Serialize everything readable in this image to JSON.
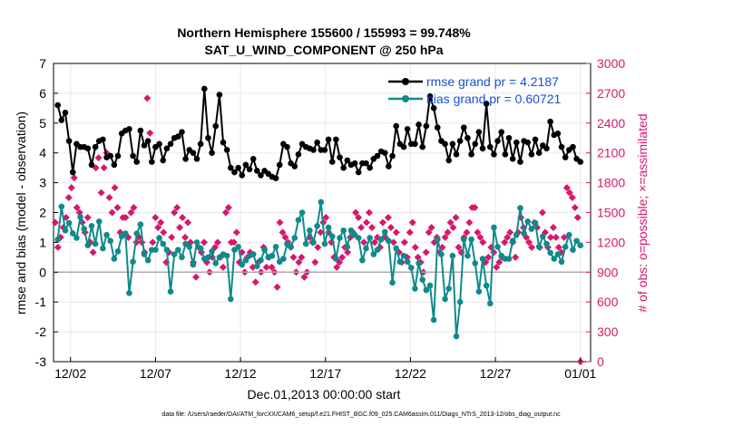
{
  "colors": {
    "rmse": "#000000",
    "bias": "#0f8a8c",
    "obs": "#d6186b",
    "zero": "#b7a4b4",
    "grid": "#e8e8e8",
    "legend_rmse": "#1a4fd6",
    "legend_bias": "#1a4fd6"
  },
  "chart_data": {
    "type": "line",
    "title": "Northern Hemisphere 155600 / 155993 = 99.748%",
    "subtitle": "SAT_U_WIND_COMPONENT @ 250 hPa",
    "xlabel": "Dec.01,2013 00:00:00 start",
    "ylabel": "rmse and bias (model - observation)",
    "ylabel_right": "# of obs: o=possible; ×=assimilated",
    "xlim": [
      0,
      31.6
    ],
    "ylim": [
      -3,
      7
    ],
    "ylim_right": [
      0,
      3000
    ],
    "x_ticks": [
      {
        "value": 1,
        "label": "12/02"
      },
      {
        "value": 6,
        "label": "12/07"
      },
      {
        "value": 11,
        "label": "12/12"
      },
      {
        "value": 16,
        "label": "12/17"
      },
      {
        "value": 21,
        "label": "12/22"
      },
      {
        "value": 26,
        "label": "12/27"
      },
      {
        "value": 31,
        "label": "01/01"
      }
    ],
    "y_ticks": [
      "-3",
      "-2",
      "-1",
      "0",
      "1",
      "2",
      "3",
      "4",
      "5",
      "6",
      "7"
    ],
    "y_ticks_right": [
      "0",
      "300",
      "600",
      "900",
      "1200",
      "1500",
      "1800",
      "2100",
      "2400",
      "2700",
      "3000"
    ],
    "legend": [
      {
        "name": "rmse grand pr = 4.2187"
      },
      {
        "name": "bias grand pr = 0.60721"
      }
    ],
    "footer": "data file: /Users/raeder/DAI/ATM_forcXX/CAM6_setup/f.e21.FHIST_BGC.f09_025.CAM6assim.011/Diags_NTrS_2013-12/obs_diag_output.nc",
    "series": [
      {
        "name": "rmse",
        "values": [
          5.6,
          5.1,
          5.35,
          4.4,
          3.35,
          4.3,
          4.2,
          4.2,
          4.15,
          3.6,
          4.2,
          4.4,
          4.45,
          3.85,
          3.9,
          3.6,
          3.9,
          4.65,
          4.75,
          4.8,
          3.9,
          3.7,
          4.75,
          4.25,
          4.4,
          3.7,
          4.2,
          4.3,
          3.75,
          4.15,
          4.3,
          4.5,
          4.55,
          4.7,
          3.8,
          4.1,
          4.0,
          3.8,
          4.3,
          6.15,
          4.5,
          4.0,
          4.9,
          5.95,
          4.35,
          4.1,
          3.5,
          3.35,
          3.5,
          3.25,
          3.6,
          3.45,
          3.8,
          3.4,
          3.25,
          3.4,
          3.3,
          3.2,
          3.15,
          3.6,
          4.3,
          4.2,
          3.65,
          3.55,
          3.95,
          4.3,
          4.2,
          4.15,
          4.1,
          4.35,
          4.1,
          4.1,
          4.45,
          3.7,
          4.45,
          3.85,
          3.5,
          3.75,
          3.6,
          3.65,
          3.35,
          3.65,
          3.65,
          3.5,
          3.8,
          3.9,
          4.05,
          4.0,
          3.55,
          3.9,
          4.9,
          4.3,
          4.2,
          4.8,
          4.3,
          4.3,
          4.95,
          4.2,
          4.9,
          5.9,
          5.5,
          4.85,
          4.4,
          4.3,
          3.75,
          4.3,
          3.95,
          4.4,
          4.85,
          4.5,
          3.95,
          4.3,
          4.7,
          4.15,
          5.65,
          4.2,
          3.95,
          4.4,
          4.7,
          3.95,
          4.5,
          3.8,
          4.35,
          3.7,
          4.4,
          4.35,
          3.95,
          4.45,
          4.0,
          4.25,
          4.15,
          5.05,
          4.6,
          4.65,
          4.2,
          3.85,
          4.1,
          4.2,
          3.8,
          3.7
        ]
      },
      {
        "name": "bias",
        "values": [
          1.1,
          2.2,
          1.4,
          1.65,
          1.3,
          1.15,
          1.85,
          1.45,
          0.9,
          1.55,
          0.95,
          1.7,
          0.8,
          1.25,
          1.05,
          0.45,
          0.7,
          1.2,
          1.3,
          -0.7,
          0.35,
          1.3,
          1.6,
          0.6,
          0.4,
          0.75,
          0.75,
          1.15,
          0.95,
          0.75,
          -0.65,
          0.6,
          0.75,
          0.5,
          0.95,
          0.85,
          0.25,
          1.0,
          0.8,
          0.45,
          0.5,
          0.7,
          0.3,
          0.5,
          0.6,
          0.55,
          -0.9,
          0.75,
          0.85,
          0.25,
          0.4,
          0.55,
          0.6,
          0.2,
          0.4,
          0.75,
          0.5,
          0.55,
          0.85,
          0.35,
          0.45,
          0.95,
          0.85,
          1.15,
          1.75,
          2.0,
          0.95,
          1.4,
          1.0,
          1.55,
          2.35,
          0.95,
          1.5,
          1.2,
          0.45,
          1.15,
          1.4,
          0.85,
          1.4,
          1.25,
          1.15,
          0.4,
          0.8,
          1.15,
          0.6,
          0.75,
          1.1,
          1.35,
          1.05,
          -0.35,
          0.8,
          0.35,
          0.55,
          0.35,
          0.15,
          -0.55,
          0.3,
          -0.25,
          -0.6,
          -0.45,
          -1.6,
          1.1,
          0.6,
          -0.9,
          -0.55,
          0.55,
          -2.15,
          -1.0,
          1.1,
          0.55,
          1.1,
          0.3,
          -0.65,
          0.45,
          -0.45,
          -1.05,
          1.5,
          0.85,
          0.55,
          0.45,
          0.45,
          1.05,
          1.25,
          2.15,
          1.3,
          1.7,
          1.45,
          1.65,
          0.85,
          1.2,
          0.95,
          0.65,
          0.45,
          0.6,
          0.35,
          0.85,
          1.25,
          0.75,
          1.05,
          0.9
        ]
      },
      {
        "name": "obs_count",
        "values": [
          1400,
          1150,
          1250,
          1350,
          1450,
          1650,
          1750,
          1850,
          1550,
          1500,
          1400,
          1300,
          1450,
          1200,
          1100,
          1950,
          2050,
          1700,
          1950,
          2100,
          1650,
          1500,
          1750,
          1550,
          1300,
          1450,
          1450,
          1250,
          1500,
          1550,
          1200,
          1250,
          1200,
          1100,
          2650,
          2300,
          1200,
          1450,
          1350,
          1400,
          1300,
          1000,
          1100,
          1250,
          1500,
          1550,
          1350,
          1450,
          1250,
          1400,
          1200,
          1000,
          850,
          1150,
          1100,
          1200,
          1000,
          900,
          1050,
          1150,
          1200,
          1050,
          950,
          1500,
          1550,
          1200,
          1200,
          1300,
          1000,
          1100,
          900,
          1050,
          1100,
          950,
          800,
          1000,
          900,
          1150,
          950,
          1050,
          950,
          900,
          750,
          1400,
          1300,
          1250,
          1200,
          1150,
          1050,
          900,
          1000,
          1050,
          850,
          900,
          1250,
          1200,
          1000,
          1150,
          1300,
          1400,
          1450,
          1300,
          1200,
          1050,
          950,
          1000,
          1050,
          1150,
          1100,
          1250,
          1300,
          1500,
          1450,
          1350,
          1200,
          1400,
          1500,
          1350,
          1200,
          1250,
          1150,
          1400,
          1250,
          1450,
          1350,
          1200,
          1300,
          1100,
          1000,
          1200,
          1050,
          1300,
          1400,
          1150,
          1050,
          1000,
          900,
          1100,
          1300,
          1350,
          1200,
          1250,
          1100,
          1150,
          1250,
          1300,
          1400,
          1350,
          1450,
          1150,
          1100,
          1250,
          1300,
          1400,
          1550,
          1550,
          1300,
          1250,
          1200,
          1000,
          1050,
          1150,
          1100,
          950,
          1000,
          1050,
          1200,
          1250,
          1300,
          1200,
          1050,
          1300,
          1450,
          1350,
          1250,
          1200,
          1150,
          1400,
          1350,
          1150,
          1500,
          1300,
          1150,
          1250,
          1350,
          1250,
          1150,
          1100,
          1250,
          1750,
          1700,
          1650,
          1550,
          1450,
          0
        ]
      }
    ]
  }
}
